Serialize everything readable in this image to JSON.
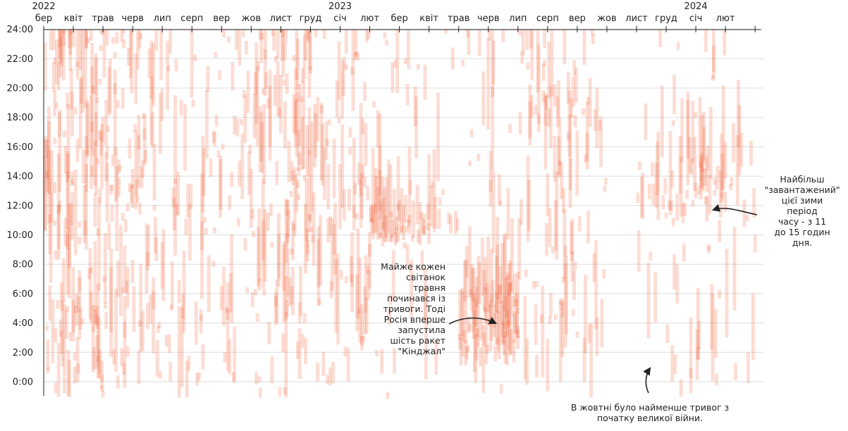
{
  "chart_data": {
    "type": "heatmap",
    "title": "",
    "x_unit": "months since Feb 2022",
    "y_unit": "hour of day",
    "ylim": [
      -1.5,
      24
    ],
    "xlim": [
      0,
      24.2
    ],
    "y_ticks": [
      "24:00",
      "22:00",
      "20:00",
      "18:00",
      "16:00",
      "14:00",
      "12:00",
      "10:00",
      "8:00",
      "6:00",
      "4:00",
      "2:00",
      "0:00"
    ],
    "y_tick_values": [
      24,
      22,
      20,
      18,
      16,
      14,
      12,
      10,
      8,
      6,
      4,
      2,
      0
    ],
    "x_tick_labels": [
      "бер",
      "квіт",
      "трав",
      "черв",
      "лип",
      "серп",
      "вер",
      "жов",
      "лист",
      "груд",
      "січ",
      "лют",
      "бер",
      "квіт",
      "трав",
      "черв",
      "лип",
      "серп",
      "вер",
      "жов",
      "лист",
      "груд",
      "січ",
      "лют"
    ],
    "x_tick_values": [
      0,
      1,
      2,
      3,
      4,
      5,
      6,
      7,
      8,
      9,
      10,
      11,
      12,
      13,
      14,
      15,
      16,
      17,
      18,
      19,
      20,
      21,
      22,
      23
    ],
    "year_labels": [
      {
        "label": "2022",
        "x": 0
      },
      {
        "label": "2023",
        "x": 10
      },
      {
        "label": "2024",
        "x": 22
      }
    ],
    "color": "#f0663a",
    "activity_profile": {
      "month_intensity": [
        0.95,
        0.9,
        0.72,
        0.62,
        0.42,
        0.45,
        0.42,
        0.62,
        0.78,
        0.5,
        0.58,
        0.55,
        0.52,
        0.3,
        0.62,
        0.68,
        0.5,
        0.55,
        0.42,
        0.18,
        0.35,
        0.5,
        0.52,
        0.3
      ],
      "hour_weights_note": "Dense activity in spring 2022; 10:00–12:00 band in Feb–Apr 2023; pre-dawn 2:00–6:00 cluster in May–Jun 2023; 11:00–15:00 band winter 2023–2024; few alerts in Oct 2023"
    },
    "annotations": [
      {
        "id": "may",
        "text_lines": [
          "Майже кожен",
          "світанок",
          "травня",
          "починався із",
          "тривоги. Тоді",
          "Росія вперше",
          "запустила",
          "шість ракет",
          "\"Кінджал\""
        ],
        "target": {
          "x": 15.2,
          "y": 3.9
        }
      },
      {
        "id": "winter",
        "text_lines": [
          "Найбільш",
          "\"завантажений\"",
          "цієї зими",
          "період",
          "часу - з 11",
          "до 15 годин",
          "дня."
        ],
        "target": {
          "x": 22.0,
          "y": 11.7
        }
      },
      {
        "id": "oct",
        "text_lines": [
          "В жовтні було найменше тривог з",
          "початку великої війни."
        ],
        "target": {
          "x": 20.0,
          "y": 1.0
        }
      }
    ]
  }
}
